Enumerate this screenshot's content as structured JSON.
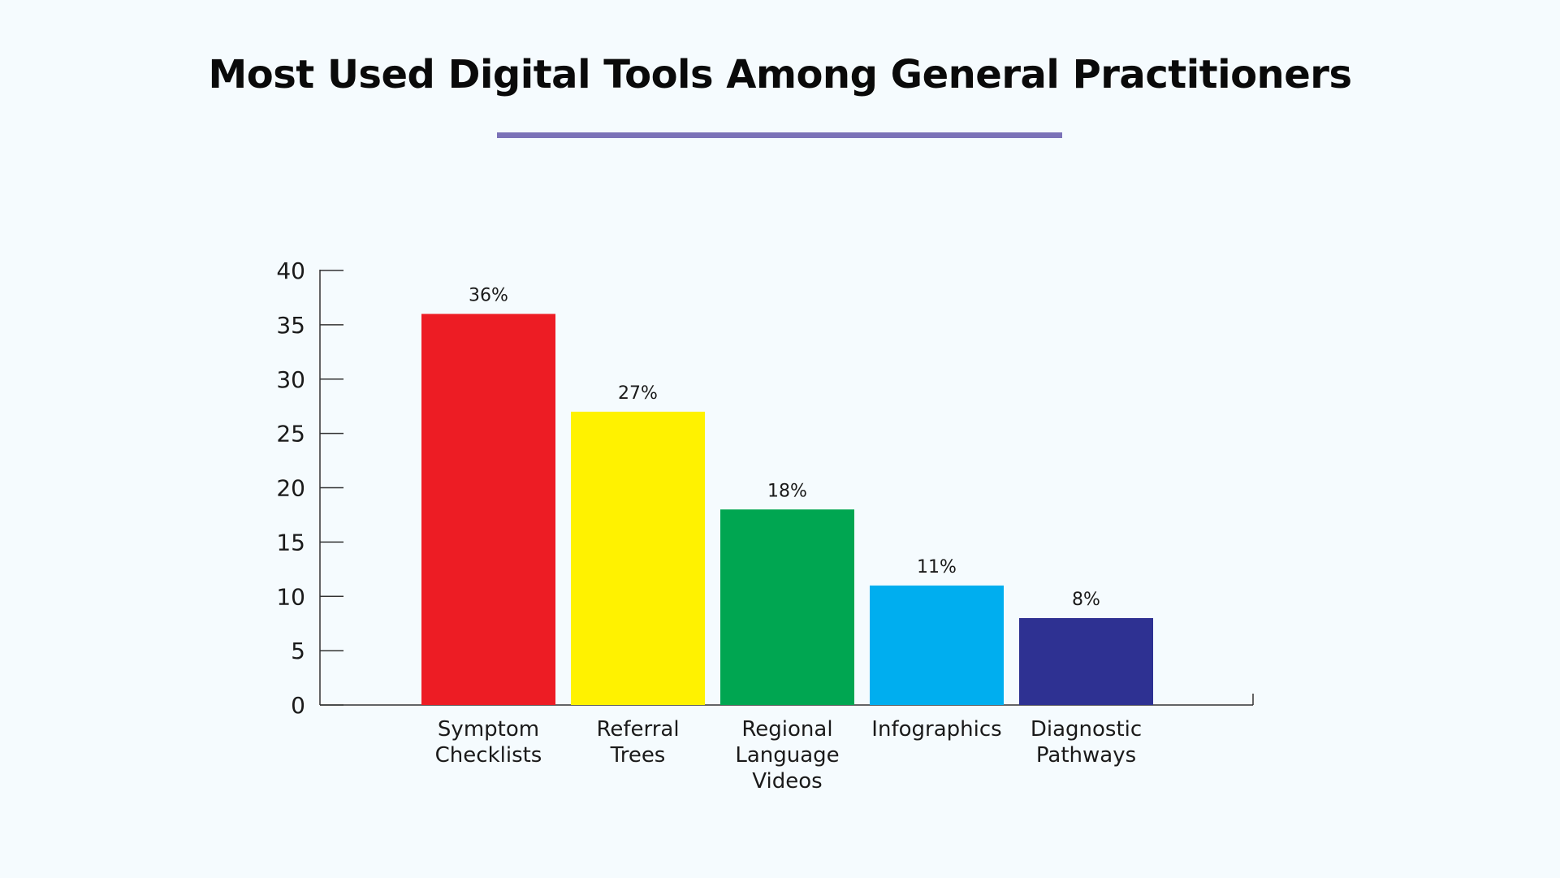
{
  "page": {
    "title": "Most Used Digital Tools Among General Practitioners",
    "accent_color": "#7b72b8",
    "background_color": "#f5fbfe"
  },
  "chart_data": {
    "type": "bar",
    "title": "Most Used Digital Tools Among General Practitioners",
    "xlabel": "",
    "ylabel": "",
    "categories": [
      [
        "Symptom",
        "Checklists"
      ],
      [
        "Referral",
        "Trees"
      ],
      [
        "Regional",
        "Language",
        "Videos"
      ],
      [
        "Infographics"
      ],
      [
        "Diagnostic",
        "Pathways"
      ]
    ],
    "values": [
      36,
      27,
      18,
      11,
      8
    ],
    "data_labels": [
      "36%",
      "27%",
      "18%",
      "11%",
      "8%"
    ],
    "colors": [
      "#ed1c24",
      "#fff200",
      "#00a651",
      "#00aeef",
      "#2e3192"
    ],
    "ylim": [
      0,
      40
    ],
    "yticks": [
      0,
      5,
      10,
      15,
      20,
      25,
      30,
      35,
      40
    ],
    "grid": false,
    "legend": "none"
  }
}
